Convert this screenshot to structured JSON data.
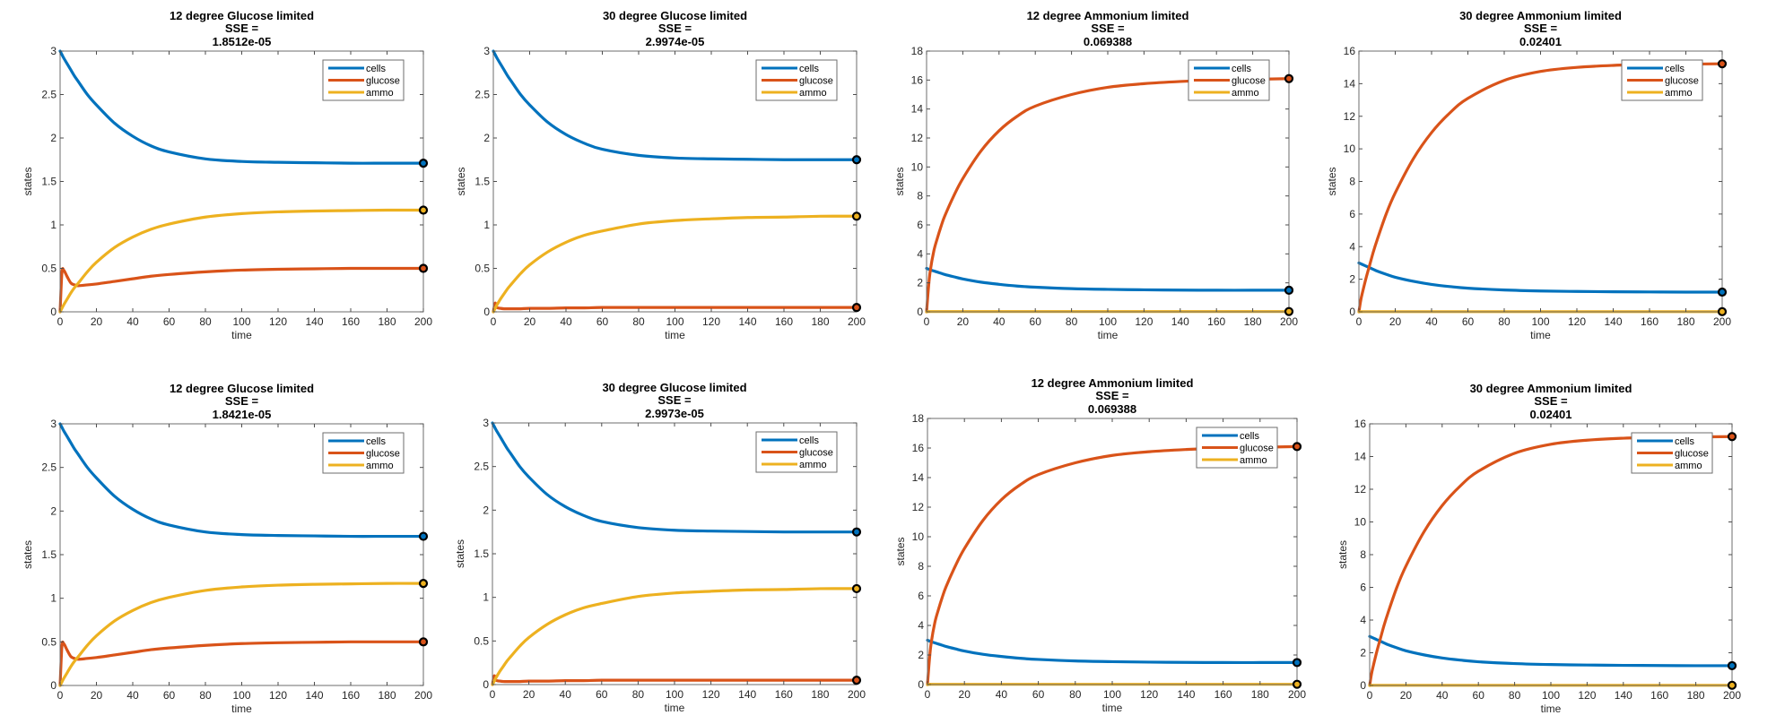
{
  "figure": {
    "colors": {
      "cells": "#0072BD",
      "glucose": "#D95319",
      "ammo": "#EDB120",
      "axis": "#6e6e6e",
      "marker": "#000000"
    },
    "legend_labels": [
      "cells",
      "glucose",
      "ammo"
    ]
  },
  "chart_data": [
    {
      "type": "line",
      "title": "12 degree Glucose limited",
      "title_line2": "SSE =",
      "title_line3": "1.8512e-05",
      "xlabel": "time",
      "ylabel": "states",
      "xlim": [
        0,
        200
      ],
      "ylim": [
        0,
        3
      ],
      "xticks": [
        0,
        20,
        40,
        60,
        80,
        100,
        120,
        140,
        160,
        180,
        200
      ],
      "yticks": [
        0,
        0.5,
        1,
        1.5,
        2,
        2.5,
        3
      ],
      "ytick_labels": [
        "0",
        "0.5",
        "1",
        "1.5",
        "2",
        "2.5",
        "3"
      ],
      "grid": false,
      "legend_position": "top-right",
      "x": [
        0,
        1,
        2,
        4,
        6,
        8,
        10,
        15,
        20,
        30,
        40,
        50,
        60,
        80,
        100,
        120,
        140,
        160,
        180,
        200
      ],
      "series": [
        {
          "name": "cells",
          "values": [
            3.0,
            2.96,
            2.92,
            2.85,
            2.78,
            2.71,
            2.65,
            2.5,
            2.38,
            2.17,
            2.02,
            1.91,
            1.84,
            1.76,
            1.73,
            1.72,
            1.715,
            1.71,
            1.71,
            1.71
          ]
        },
        {
          "name": "glucose",
          "values": [
            0.0,
            0.45,
            0.48,
            0.4,
            0.33,
            0.31,
            0.3,
            0.31,
            0.32,
            0.35,
            0.38,
            0.41,
            0.43,
            0.46,
            0.48,
            0.49,
            0.495,
            0.5,
            0.5,
            0.5
          ]
        },
        {
          "name": "ammo",
          "values": [
            0.0,
            0.04,
            0.08,
            0.15,
            0.22,
            0.28,
            0.33,
            0.46,
            0.57,
            0.74,
            0.86,
            0.95,
            1.01,
            1.09,
            1.13,
            1.15,
            1.16,
            1.165,
            1.17,
            1.17
          ]
        }
      ],
      "endpoint_markers": [
        1.71,
        0.5,
        1.17
      ]
    },
    {
      "type": "line",
      "title": "30 degree Glucose limited",
      "title_line2": "SSE =",
      "title_line3": "2.9974e-05",
      "xlabel": "time",
      "ylabel": "states",
      "xlim": [
        0,
        200
      ],
      "ylim": [
        0,
        3
      ],
      "xticks": [
        0,
        20,
        40,
        60,
        80,
        100,
        120,
        140,
        160,
        180,
        200
      ],
      "yticks": [
        0,
        0.5,
        1,
        1.5,
        2,
        2.5,
        3
      ],
      "ytick_labels": [
        "0",
        "0.5",
        "1",
        "1.5",
        "2",
        "2.5",
        "3"
      ],
      "grid": false,
      "legend_position": "top-right",
      "x": [
        0,
        1,
        2,
        4,
        6,
        8,
        10,
        15,
        20,
        30,
        40,
        50,
        60,
        80,
        100,
        120,
        140,
        160,
        180,
        200
      ],
      "series": [
        {
          "name": "cells",
          "values": [
            3.0,
            2.96,
            2.92,
            2.85,
            2.78,
            2.71,
            2.65,
            2.5,
            2.38,
            2.18,
            2.04,
            1.94,
            1.87,
            1.8,
            1.77,
            1.76,
            1.755,
            1.75,
            1.75,
            1.75
          ]
        },
        {
          "name": "glucose",
          "values": [
            0.0,
            0.1,
            0.05,
            0.04,
            0.035,
            0.035,
            0.035,
            0.035,
            0.04,
            0.04,
            0.045,
            0.045,
            0.05,
            0.05,
            0.05,
            0.05,
            0.05,
            0.05,
            0.05,
            0.05
          ]
        },
        {
          "name": "ammo",
          "values": [
            0.0,
            0.04,
            0.08,
            0.15,
            0.21,
            0.27,
            0.32,
            0.44,
            0.54,
            0.69,
            0.8,
            0.88,
            0.93,
            1.01,
            1.05,
            1.07,
            1.085,
            1.09,
            1.1,
            1.1
          ]
        }
      ],
      "endpoint_markers": [
        1.75,
        0.05,
        1.1
      ]
    },
    {
      "type": "line",
      "title": "12 degree Ammonium limited",
      "title_line2": "SSE =",
      "title_line3": "0.069388",
      "xlabel": "time",
      "ylabel": "states",
      "xlim": [
        0,
        200
      ],
      "ylim": [
        0,
        18
      ],
      "xticks": [
        0,
        20,
        40,
        60,
        80,
        100,
        120,
        140,
        160,
        180,
        200
      ],
      "yticks": [
        0,
        2,
        4,
        6,
        8,
        10,
        12,
        14,
        16,
        18
      ],
      "ytick_labels": [
        "0",
        "2",
        "4",
        "6",
        "8",
        "10",
        "12",
        "14",
        "16",
        "18"
      ],
      "grid": false,
      "legend_position": "top-right",
      "x": [
        0,
        1,
        2,
        4,
        6,
        8,
        10,
        15,
        20,
        30,
        40,
        50,
        60,
        80,
        100,
        120,
        140,
        160,
        180,
        200
      ],
      "series": [
        {
          "name": "cells",
          "values": [
            3.0,
            2.95,
            2.9,
            2.82,
            2.74,
            2.66,
            2.58,
            2.42,
            2.27,
            2.05,
            1.9,
            1.78,
            1.7,
            1.6,
            1.55,
            1.52,
            1.5,
            1.49,
            1.49,
            1.49
          ]
        },
        {
          "name": "glucose",
          "values": [
            0.0,
            1.6,
            2.8,
            4.2,
            5.1,
            5.9,
            6.6,
            8.0,
            9.2,
            11.1,
            12.5,
            13.5,
            14.2,
            15.0,
            15.5,
            15.75,
            15.9,
            16.0,
            16.05,
            16.1
          ]
        },
        {
          "name": "ammo",
          "values": [
            0.0,
            0.02,
            0.02,
            0.02,
            0.02,
            0.02,
            0.02,
            0.02,
            0.02,
            0.02,
            0.02,
            0.02,
            0.02,
            0.02,
            0.02,
            0.02,
            0.02,
            0.02,
            0.02,
            0.02
          ]
        }
      ],
      "endpoint_markers": [
        1.49,
        16.1,
        0.02
      ]
    },
    {
      "type": "line",
      "title": "30 degree Ammonium limited",
      "title_line2": "SSE =",
      "title_line3": "0.02401",
      "xlabel": "time",
      "ylabel": "states",
      "xlim": [
        0,
        200
      ],
      "ylim": [
        0,
        16
      ],
      "xticks": [
        0,
        20,
        40,
        60,
        80,
        100,
        120,
        140,
        160,
        180,
        200
      ],
      "yticks": [
        0,
        2,
        4,
        6,
        8,
        10,
        12,
        14,
        16
      ],
      "ytick_labels": [
        "0",
        "2",
        "4",
        "6",
        "8",
        "10",
        "12",
        "14",
        "16"
      ],
      "grid": false,
      "legend_position": "top-right",
      "x": [
        0,
        1,
        2,
        4,
        6,
        8,
        10,
        15,
        20,
        30,
        40,
        50,
        60,
        80,
        100,
        120,
        140,
        160,
        180,
        200
      ],
      "series": [
        {
          "name": "cells",
          "values": [
            3.0,
            2.95,
            2.9,
            2.8,
            2.7,
            2.6,
            2.5,
            2.3,
            2.12,
            1.87,
            1.68,
            1.55,
            1.45,
            1.34,
            1.28,
            1.25,
            1.23,
            1.22,
            1.21,
            1.21
          ]
        },
        {
          "name": "glucose",
          "values": [
            0.0,
            0.7,
            1.2,
            2.1,
            2.9,
            3.7,
            4.4,
            6.0,
            7.3,
            9.4,
            11.0,
            12.2,
            13.1,
            14.2,
            14.75,
            15.0,
            15.12,
            15.18,
            15.2,
            15.22
          ]
        },
        {
          "name": "ammo",
          "values": [
            0.0,
            0.01,
            0.01,
            0.01,
            0.01,
            0.01,
            0.01,
            0.01,
            0.01,
            0.01,
            0.01,
            0.01,
            0.01,
            0.01,
            0.01,
            0.01,
            0.01,
            0.01,
            0.01,
            0.01
          ]
        }
      ],
      "endpoint_markers": [
        1.21,
        15.22,
        0.01
      ]
    },
    {
      "type": "line",
      "title": "12 degree Glucose limited",
      "title_line2": "SSE =",
      "title_line3": "1.8421e-05",
      "xlabel": "time",
      "ylabel": "states",
      "xlim": [
        0,
        200
      ],
      "ylim": [
        0,
        3
      ],
      "xticks": [
        0,
        20,
        40,
        60,
        80,
        100,
        120,
        140,
        160,
        180,
        200
      ],
      "yticks": [
        0,
        0.5,
        1,
        1.5,
        2,
        2.5,
        3
      ],
      "ytick_labels": [
        "0",
        "0.5",
        "1",
        "1.5",
        "2",
        "2.5",
        "3"
      ],
      "grid": false,
      "legend_position": "top-right",
      "x": [
        0,
        1,
        2,
        4,
        6,
        8,
        10,
        15,
        20,
        30,
        40,
        50,
        60,
        80,
        100,
        120,
        140,
        160,
        180,
        200
      ],
      "series": [
        {
          "name": "cells",
          "values": [
            3.0,
            2.96,
            2.92,
            2.85,
            2.78,
            2.71,
            2.65,
            2.5,
            2.38,
            2.17,
            2.02,
            1.91,
            1.84,
            1.76,
            1.73,
            1.72,
            1.715,
            1.71,
            1.71,
            1.71
          ]
        },
        {
          "name": "glucose",
          "values": [
            0.0,
            0.45,
            0.48,
            0.4,
            0.33,
            0.31,
            0.3,
            0.31,
            0.32,
            0.35,
            0.38,
            0.41,
            0.43,
            0.46,
            0.48,
            0.49,
            0.495,
            0.5,
            0.5,
            0.5
          ]
        },
        {
          "name": "ammo",
          "values": [
            0.0,
            0.04,
            0.08,
            0.15,
            0.22,
            0.28,
            0.33,
            0.46,
            0.57,
            0.74,
            0.86,
            0.95,
            1.01,
            1.09,
            1.13,
            1.15,
            1.16,
            1.165,
            1.17,
            1.17
          ]
        }
      ],
      "endpoint_markers": [
        1.71,
        0.5,
        1.17
      ]
    },
    {
      "type": "line",
      "title": "30 degree Glucose limited",
      "title_line2": "SSE =",
      "title_line3": "2.9973e-05",
      "xlabel": "time",
      "ylabel": "states",
      "xlim": [
        0,
        200
      ],
      "ylim": [
        0,
        3
      ],
      "xticks": [
        0,
        20,
        40,
        60,
        80,
        100,
        120,
        140,
        160,
        180,
        200
      ],
      "yticks": [
        0,
        0.5,
        1,
        1.5,
        2,
        2.5,
        3
      ],
      "ytick_labels": [
        "0",
        "0.5",
        "1",
        "1.5",
        "2",
        "2.5",
        "3"
      ],
      "grid": false,
      "legend_position": "top-right",
      "x": [
        0,
        1,
        2,
        4,
        6,
        8,
        10,
        15,
        20,
        30,
        40,
        50,
        60,
        80,
        100,
        120,
        140,
        160,
        180,
        200
      ],
      "series": [
        {
          "name": "cells",
          "values": [
            3.0,
            2.96,
            2.92,
            2.85,
            2.78,
            2.71,
            2.65,
            2.5,
            2.38,
            2.18,
            2.04,
            1.94,
            1.87,
            1.8,
            1.77,
            1.76,
            1.755,
            1.75,
            1.75,
            1.75
          ]
        },
        {
          "name": "glucose",
          "values": [
            0.0,
            0.1,
            0.05,
            0.04,
            0.035,
            0.035,
            0.035,
            0.035,
            0.04,
            0.04,
            0.045,
            0.045,
            0.05,
            0.05,
            0.05,
            0.05,
            0.05,
            0.05,
            0.05,
            0.05
          ]
        },
        {
          "name": "ammo",
          "values": [
            0.0,
            0.04,
            0.08,
            0.15,
            0.21,
            0.27,
            0.32,
            0.44,
            0.54,
            0.69,
            0.8,
            0.88,
            0.93,
            1.01,
            1.05,
            1.07,
            1.085,
            1.09,
            1.1,
            1.1
          ]
        }
      ],
      "endpoint_markers": [
        1.75,
        0.05,
        1.1
      ]
    },
    {
      "type": "line",
      "title": "12 degree Ammonium limited",
      "title_line2": "SSE =",
      "title_line3": "0.069388",
      "xlabel": "time",
      "ylabel": "states",
      "xlim": [
        0,
        200
      ],
      "ylim": [
        0,
        18
      ],
      "xticks": [
        0,
        20,
        40,
        60,
        80,
        100,
        120,
        140,
        160,
        180,
        200
      ],
      "yticks": [
        0,
        2,
        4,
        6,
        8,
        10,
        12,
        14,
        16,
        18
      ],
      "ytick_labels": [
        "0",
        "2",
        "4",
        "6",
        "8",
        "10",
        "12",
        "14",
        "16",
        "18"
      ],
      "grid": false,
      "legend_position": "top-right",
      "x": [
        0,
        1,
        2,
        4,
        6,
        8,
        10,
        15,
        20,
        30,
        40,
        50,
        60,
        80,
        100,
        120,
        140,
        160,
        180,
        200
      ],
      "series": [
        {
          "name": "cells",
          "values": [
            3.0,
            2.95,
            2.9,
            2.82,
            2.74,
            2.66,
            2.58,
            2.42,
            2.27,
            2.05,
            1.9,
            1.78,
            1.7,
            1.6,
            1.55,
            1.52,
            1.5,
            1.49,
            1.49,
            1.49
          ]
        },
        {
          "name": "glucose",
          "values": [
            0.0,
            1.6,
            2.8,
            4.2,
            5.1,
            5.9,
            6.6,
            8.0,
            9.2,
            11.1,
            12.5,
            13.5,
            14.2,
            15.0,
            15.5,
            15.75,
            15.9,
            16.0,
            16.05,
            16.1
          ]
        },
        {
          "name": "ammo",
          "values": [
            0.0,
            0.02,
            0.02,
            0.02,
            0.02,
            0.02,
            0.02,
            0.02,
            0.02,
            0.02,
            0.02,
            0.02,
            0.02,
            0.02,
            0.02,
            0.02,
            0.02,
            0.02,
            0.02,
            0.02
          ]
        }
      ],
      "endpoint_markers": [
        1.49,
        16.1,
        0.02
      ]
    },
    {
      "type": "line",
      "title": "30 degree Ammonium limited",
      "title_line2": "SSE =",
      "title_line3": "0.02401",
      "xlabel": "time",
      "ylabel": "states",
      "xlim": [
        0,
        200
      ],
      "ylim": [
        0,
        16
      ],
      "xticks": [
        0,
        20,
        40,
        60,
        80,
        100,
        120,
        140,
        160,
        180,
        200
      ],
      "yticks": [
        0,
        2,
        4,
        6,
        8,
        10,
        12,
        14,
        16
      ],
      "ytick_labels": [
        "0",
        "2",
        "4",
        "6",
        "8",
        "10",
        "12",
        "14",
        "16"
      ],
      "grid": false,
      "legend_position": "top-right",
      "x": [
        0,
        1,
        2,
        4,
        6,
        8,
        10,
        15,
        20,
        30,
        40,
        50,
        60,
        80,
        100,
        120,
        140,
        160,
        180,
        200
      ],
      "series": [
        {
          "name": "cells",
          "values": [
            3.0,
            2.95,
            2.9,
            2.8,
            2.7,
            2.6,
            2.5,
            2.3,
            2.12,
            1.87,
            1.68,
            1.55,
            1.45,
            1.34,
            1.28,
            1.25,
            1.23,
            1.22,
            1.21,
            1.21
          ]
        },
        {
          "name": "glucose",
          "values": [
            0.0,
            0.7,
            1.2,
            2.1,
            2.9,
            3.7,
            4.4,
            6.0,
            7.3,
            9.4,
            11.0,
            12.2,
            13.1,
            14.2,
            14.75,
            15.0,
            15.12,
            15.18,
            15.2,
            15.22
          ]
        },
        {
          "name": "ammo",
          "values": [
            0.0,
            0.01,
            0.01,
            0.01,
            0.01,
            0.01,
            0.01,
            0.01,
            0.01,
            0.01,
            0.01,
            0.01,
            0.01,
            0.01,
            0.01,
            0.01,
            0.01,
            0.01,
            0.01,
            0.01
          ]
        }
      ],
      "endpoint_markers": [
        1.21,
        15.22,
        0.01
      ]
    }
  ]
}
